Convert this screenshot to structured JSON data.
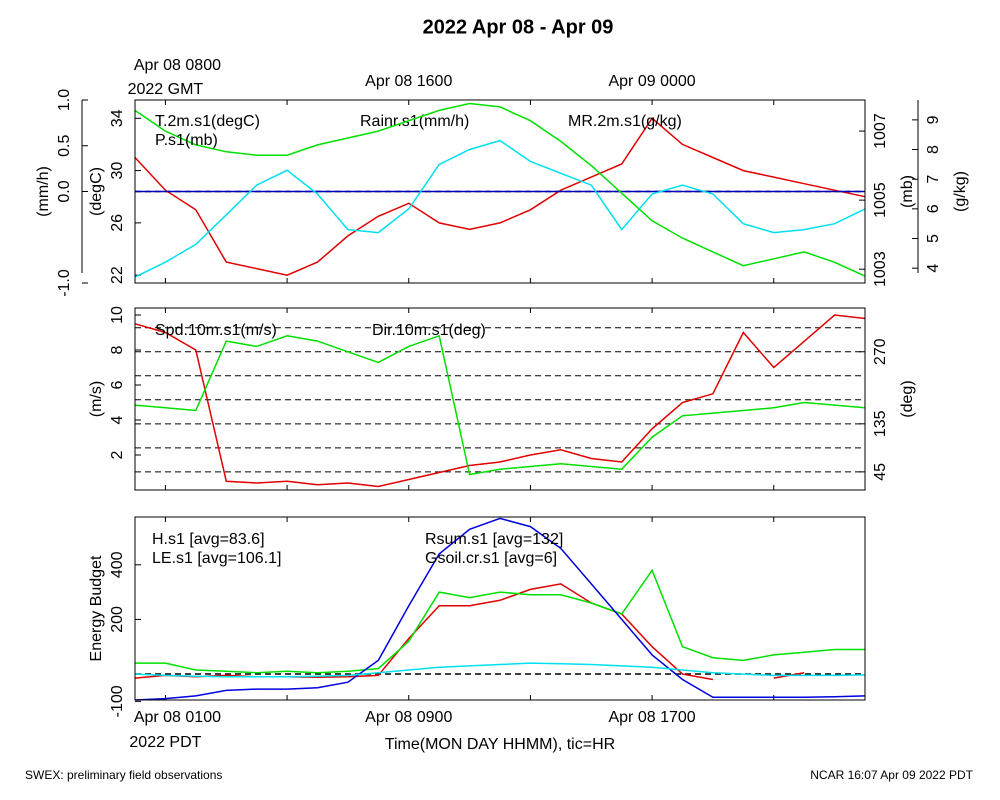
{
  "title": "2022 Apr 08 - Apr 09",
  "footer_left": "SWEX: preliminary field observations",
  "footer_right": "NCAR 16:07 Apr 09 2022 PDT",
  "chart_data": [
    {
      "type": "line",
      "x": [
        7,
        8,
        9,
        10,
        11,
        12,
        13,
        14,
        15,
        16,
        17,
        18,
        19,
        20,
        21,
        22,
        23,
        24,
        25,
        26,
        27,
        28,
        29,
        30,
        31
      ],
      "xlim": [
        7,
        31
      ],
      "xticks": [
        {
          "value": 8,
          "label": "Apr 08 0800"
        },
        {
          "value": 16,
          "label": "Apr 08 1600"
        },
        {
          "value": 24,
          "label": "Apr 09 0000"
        }
      ],
      "xtick_note": "2022 GMT",
      "minor_xticks": [
        12,
        20,
        28
      ],
      "axes": [
        {
          "label": "(degC)",
          "side": "left",
          "ylim": [
            21.4,
            35.4
          ],
          "yticks": [
            22,
            26,
            30,
            34
          ]
        },
        {
          "label": "(mm/h)",
          "side": "left",
          "ylim": [
            -1,
            1
          ],
          "yticks": [
            {
              "value": -1,
              "label": "-1.0"
            },
            {
              "value": 0,
              "label": "0.0"
            },
            0.5,
            {
              "value": 1,
              "label": "1.0"
            }
          ],
          "refline": 0
        },
        {
          "label": "(mb)",
          "side": "right",
          "ylim": [
            1002.6,
            1007.9
          ],
          "yticks": [
            1003,
            1005,
            1007
          ]
        },
        {
          "label": "(g/kg)",
          "side": "right",
          "ylim": [
            3.5,
            9.67
          ],
          "yticks": [
            4,
            5,
            6,
            7,
            8,
            9
          ]
        }
      ],
      "series": [
        {
          "name": "T.2m.s1(degC)",
          "color": "#e00000",
          "axis": 0,
          "values": [
            31,
            28.5,
            27,
            23,
            22.5,
            22,
            23,
            25,
            26.5,
            27.5,
            26,
            25.5,
            26,
            27,
            28.5,
            29.5,
            30.5,
            34,
            32,
            31,
            30,
            29.5,
            29,
            28.5,
            28
          ]
        },
        {
          "name": "Rainr.s1(mm/h)",
          "color": "#0000c0",
          "axis": 1,
          "values": [
            0,
            0,
            0,
            0,
            0,
            0,
            0,
            0,
            0,
            0,
            0,
            0,
            0,
            0,
            0,
            0,
            0,
            0,
            0,
            0,
            0,
            0,
            0,
            0,
            0
          ]
        },
        {
          "name": "MR.2m.s1(g/kg)",
          "color": "#00e0f0",
          "axis": 3,
          "values": [
            3.7,
            4.2,
            4.8,
            5.8,
            6.8,
            7.3,
            6.5,
            5.3,
            5.2,
            6.0,
            7.5,
            8.0,
            8.3,
            7.6,
            7.2,
            6.8,
            5.3,
            6.5,
            6.8,
            6.5,
            5.5,
            5.2,
            5.3,
            5.5,
            6.0
          ]
        },
        {
          "name": "P.s1(mb)",
          "color": "#00e000",
          "axis": 2,
          "values": [
            1007.6,
            1007.0,
            1006.6,
            1006.4,
            1006.3,
            1006.3,
            1006.6,
            1006.8,
            1007.0,
            1007.3,
            1007.6,
            1007.8,
            1007.7,
            1007.3,
            1006.7,
            1006.0,
            1005.2,
            1004.4,
            1003.9,
            1003.5,
            1003.1,
            1003.3,
            1003.5,
            1003.2,
            1002.8
          ]
        }
      ]
    },
    {
      "type": "line",
      "x": [
        7,
        8,
        9,
        10,
        11,
        12,
        13,
        14,
        15,
        16,
        17,
        18,
        19,
        20,
        21,
        22,
        23,
        24,
        25,
        26,
        27,
        28,
        29,
        30,
        31
      ],
      "xlim": [
        7,
        31
      ],
      "minor_xticks": [
        8,
        12,
        16,
        20,
        24,
        28
      ],
      "axes": [
        {
          "label": "(m/s)",
          "side": "left",
          "ylim": [
            0,
            10.4
          ],
          "yticks": [
            2,
            4,
            6,
            8,
            10
          ]
        },
        {
          "label": "(deg)",
          "side": "right",
          "ylim": [
            11,
            352
          ],
          "yticks": [
            45,
            135,
            270
          ],
          "grid": [
            45,
            90,
            135,
            180,
            225,
            270,
            315
          ]
        }
      ],
      "series": [
        {
          "name": "Spd.10m.s1(m/s)",
          "color": "#e00000",
          "axis": 0,
          "values": [
            9.5,
            9.0,
            8.0,
            0.5,
            0.4,
            0.5,
            0.3,
            0.4,
            0.2,
            0.6,
            1.0,
            1.4,
            1.6,
            2.0,
            2.3,
            1.8,
            1.6,
            3.5,
            5.0,
            5.5,
            9.0,
            7.0,
            8.5,
            10.0,
            9.8
          ]
        },
        {
          "name": "Dir.10m.s1(deg)",
          "color": "#00e000",
          "axis": 1,
          "values": [
            170,
            165,
            160,
            290,
            280,
            300,
            290,
            270,
            250,
            280,
            300,
            40,
            50,
            55,
            60,
            55,
            50,
            110,
            150,
            155,
            160,
            165,
            175,
            170,
            165
          ]
        }
      ]
    },
    {
      "type": "line",
      "x": [
        7,
        8,
        9,
        10,
        11,
        12,
        13,
        14,
        15,
        16,
        17,
        18,
        19,
        20,
        21,
        22,
        23,
        24,
        25,
        26,
        27,
        28,
        29,
        30,
        31
      ],
      "xlim": [
        7,
        31
      ],
      "xticks": [
        {
          "value": 8,
          "label": "Apr 08 0100"
        },
        {
          "value": 16,
          "label": "Apr 08 0900"
        },
        {
          "value": 24,
          "label": "Apr 08 1700"
        }
      ],
      "xtick_note": "2022 PDT",
      "minor_xticks": [
        12,
        20,
        28
      ],
      "xlabel": "Time(MON DAY HHMM), tic=HR",
      "axes": [
        {
          "label": "Energy Budget",
          "side": "left",
          "ylim": [
            -95,
            575
          ],
          "yticks": [
            -100,
            200,
            400
          ],
          "refline": 0
        }
      ],
      "series": [
        {
          "name": "H.s1 [avg=83.6]",
          "color": "#e00000",
          "axis": 0,
          "values": [
            -15,
            -5,
            -10,
            -5,
            -10,
            -10,
            -12,
            -10,
            -5,
            130,
            250,
            250,
            270,
            310,
            330,
            260,
            220,
            100,
            0,
            -20,
            null,
            -15,
            5,
            null,
            null
          ]
        },
        {
          "name": "LE.s1 [avg=106.1]",
          "color": "#00e000",
          "axis": 0,
          "values": [
            40,
            40,
            15,
            10,
            5,
            10,
            5,
            10,
            20,
            120,
            300,
            280,
            300,
            290,
            290,
            260,
            220,
            380,
            100,
            60,
            50,
            70,
            80,
            90,
            90
          ]
        },
        {
          "name": "Rsum.s1 [avg=132]",
          "color": "#0000e0",
          "axis": 0,
          "values": [
            -95,
            -90,
            -80,
            -60,
            -55,
            -55,
            -50,
            -30,
            50,
            250,
            440,
            530,
            570,
            540,
            460,
            330,
            200,
            70,
            -20,
            -85,
            -85,
            -85,
            -85,
            -83,
            -80
          ]
        },
        {
          "name": "Gsoil.cr.s1 [avg=6]",
          "color": "#00e0f0",
          "axis": 0,
          "values": [
            0,
            -5,
            -8,
            -10,
            -10,
            -10,
            -8,
            -5,
            5,
            15,
            25,
            30,
            35,
            40,
            38,
            35,
            30,
            25,
            15,
            5,
            0,
            -5,
            -5,
            -5,
            -3
          ]
        }
      ]
    }
  ]
}
